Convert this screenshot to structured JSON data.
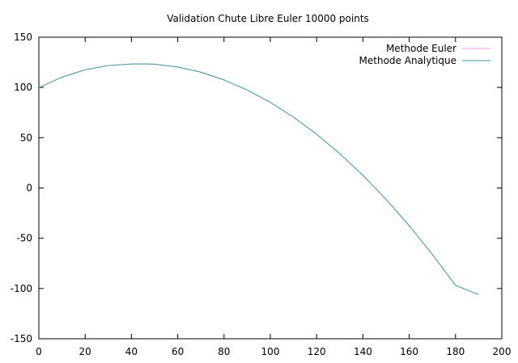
{
  "chart_data": {
    "type": "line",
    "title": "Validation Chute Libre Euler 10000 points",
    "xlabel": "",
    "ylabel": "",
    "xlim": [
      0,
      200
    ],
    "ylim": [
      -150,
      150
    ],
    "xticks": [
      0,
      20,
      40,
      60,
      80,
      100,
      120,
      140,
      160,
      180,
      200
    ],
    "yticks": [
      -150,
      -100,
      -50,
      0,
      50,
      100,
      150
    ],
    "grid": false,
    "legend_position": "top-right",
    "series": [
      {
        "name": "Methode Euler",
        "color": "#ff99dd",
        "x": [
          0,
          10,
          20,
          30,
          40,
          45,
          50,
          60,
          70,
          80,
          90,
          100,
          110,
          120,
          130,
          140,
          150,
          160,
          170,
          180,
          190
        ],
        "y": [
          100,
          110.2,
          117.6,
          121.8,
          123.4,
          123.5,
          123.2,
          120.3,
          115.2,
          107.5,
          97.5,
          85.2,
          70.5,
          53.5,
          34.2,
          12.6,
          -11.3,
          -37.5,
          -66.1,
          -96.9,
          -106
        ]
      },
      {
        "name": "Methode Analytique",
        "color": "#3f9f9a",
        "x": [
          0,
          10,
          20,
          30,
          40,
          45,
          50,
          60,
          70,
          80,
          90,
          100,
          110,
          120,
          130,
          140,
          150,
          160,
          170,
          180,
          190
        ],
        "y": [
          100,
          110.2,
          117.6,
          121.8,
          123.4,
          123.5,
          123.2,
          120.3,
          115.2,
          107.5,
          97.5,
          85.2,
          70.5,
          53.5,
          34.2,
          12.6,
          -11.3,
          -37.5,
          -66.1,
          -96.9,
          -106
        ]
      }
    ]
  }
}
